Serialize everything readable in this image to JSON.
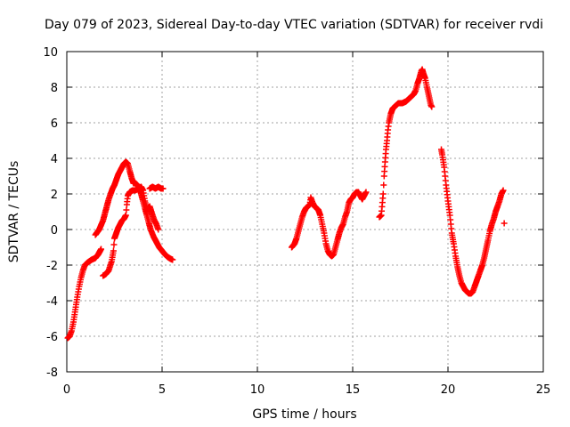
{
  "chart_data": {
    "type": "scatter",
    "title": "Day 079 of 2023, Sidereal Day-to-day VTEC variation (SDTVAR) for receiver rvdi",
    "xlabel": "GPS time / hours",
    "ylabel": "SDTVAR / TECUs",
    "xlim": [
      0,
      25
    ],
    "ylim": [
      -8,
      10
    ],
    "xticks": [
      0,
      5,
      10,
      15,
      20,
      25
    ],
    "yticks": [
      -8,
      -6,
      -4,
      -2,
      0,
      2,
      4,
      6,
      8,
      10
    ],
    "grid": true,
    "marker": "plus",
    "color": "#ff0000",
    "series": [
      {
        "name": "track-1",
        "points": [
          [
            0.05,
            -6.1
          ],
          [
            0.15,
            -6.0
          ],
          [
            0.25,
            -5.7
          ],
          [
            0.35,
            -5.2
          ],
          [
            0.45,
            -4.5
          ],
          [
            0.55,
            -3.8
          ],
          [
            0.65,
            -3.2
          ],
          [
            0.75,
            -2.7
          ],
          [
            0.85,
            -2.3
          ],
          [
            0.95,
            -2.0
          ],
          [
            1.1,
            -1.85
          ],
          [
            1.3,
            -1.7
          ],
          [
            1.5,
            -1.6
          ],
          [
            1.65,
            -1.4
          ],
          [
            1.8,
            -1.1
          ]
        ]
      },
      {
        "name": "track-2",
        "points": [
          [
            1.5,
            -0.3
          ],
          [
            1.7,
            0.0
          ],
          [
            1.9,
            0.5
          ],
          [
            2.0,
            0.9
          ],
          [
            2.1,
            1.3
          ],
          [
            2.2,
            1.7
          ],
          [
            2.3,
            2.0
          ],
          [
            2.4,
            2.3
          ],
          [
            2.5,
            2.5
          ],
          [
            2.6,
            2.8
          ],
          [
            2.7,
            3.1
          ],
          [
            2.8,
            3.3
          ],
          [
            2.9,
            3.5
          ],
          [
            3.0,
            3.7
          ],
          [
            3.1,
            3.8
          ],
          [
            3.2,
            3.7
          ],
          [
            3.3,
            3.3
          ],
          [
            3.4,
            2.9
          ],
          [
            3.5,
            2.6
          ],
          [
            3.6,
            2.6
          ],
          [
            3.7,
            2.5
          ],
          [
            3.8,
            2.3
          ],
          [
            3.9,
            2.0
          ],
          [
            4.0,
            1.6
          ],
          [
            4.1,
            1.2
          ],
          [
            4.2,
            0.8
          ],
          [
            4.3,
            0.4
          ],
          [
            4.4,
            0.0
          ],
          [
            4.55,
            -0.4
          ],
          [
            4.7,
            -0.7
          ],
          [
            4.85,
            -1.0
          ],
          [
            5.0,
            -1.2
          ],
          [
            5.15,
            -1.4
          ],
          [
            5.3,
            -1.55
          ],
          [
            5.45,
            -1.65
          ],
          [
            5.55,
            -1.7
          ]
        ]
      },
      {
        "name": "track-3",
        "points": [
          [
            1.9,
            -2.6
          ],
          [
            2.05,
            -2.5
          ],
          [
            2.2,
            -2.3
          ],
          [
            2.35,
            -1.8
          ],
          [
            2.45,
            -1.2
          ],
          [
            2.5,
            -0.5
          ],
          [
            2.6,
            -0.2
          ],
          [
            2.7,
            0.1
          ],
          [
            2.8,
            0.3
          ],
          [
            2.9,
            0.5
          ],
          [
            3.0,
            0.6
          ],
          [
            3.1,
            0.8
          ],
          [
            3.15,
            1.4
          ],
          [
            3.2,
            1.9
          ],
          [
            3.3,
            2.1
          ],
          [
            3.45,
            2.2
          ],
          [
            3.6,
            2.2
          ],
          [
            3.75,
            2.3
          ],
          [
            3.9,
            2.4
          ],
          [
            4.0,
            2.2
          ],
          [
            4.1,
            1.6
          ],
          [
            4.2,
            1.1
          ],
          [
            4.35,
            1.3
          ],
          [
            4.5,
            0.8
          ],
          [
            4.6,
            0.5
          ],
          [
            4.7,
            0.3
          ],
          [
            4.8,
            0.0
          ]
        ]
      },
      {
        "name": "track-4",
        "points": [
          [
            4.35,
            2.3
          ],
          [
            4.5,
            2.4
          ],
          [
            4.65,
            2.3
          ],
          [
            4.8,
            2.4
          ],
          [
            4.95,
            2.3
          ],
          [
            5.05,
            2.3
          ]
        ]
      },
      {
        "name": "track-5",
        "points": [
          [
            11.8,
            -1.0
          ],
          [
            11.95,
            -0.8
          ],
          [
            12.05,
            -0.5
          ],
          [
            12.15,
            -0.1
          ],
          [
            12.25,
            0.3
          ],
          [
            12.35,
            0.7
          ],
          [
            12.45,
            1.0
          ],
          [
            12.55,
            1.2
          ],
          [
            12.65,
            1.3
          ],
          [
            12.75,
            1.4
          ],
          [
            12.8,
            1.8
          ],
          [
            12.9,
            1.5
          ],
          [
            13.0,
            1.3
          ],
          [
            13.1,
            1.2
          ],
          [
            13.2,
            1.1
          ],
          [
            13.3,
            0.8
          ],
          [
            13.4,
            0.3
          ],
          [
            13.5,
            -0.2
          ],
          [
            13.6,
            -0.8
          ],
          [
            13.7,
            -1.2
          ],
          [
            13.8,
            -1.4
          ],
          [
            13.9,
            -1.5
          ],
          [
            14.0,
            -1.4
          ],
          [
            14.1,
            -1.0
          ],
          [
            14.2,
            -0.6
          ],
          [
            14.3,
            -0.2
          ],
          [
            14.4,
            0.1
          ],
          [
            14.5,
            0.3
          ],
          [
            14.6,
            0.7
          ],
          [
            14.7,
            1.0
          ],
          [
            14.8,
            1.5
          ],
          [
            14.9,
            1.7
          ],
          [
            15.0,
            1.8
          ],
          [
            15.1,
            2.0
          ],
          [
            15.2,
            2.1
          ],
          [
            15.3,
            2.1
          ],
          [
            15.4,
            1.9
          ],
          [
            15.5,
            1.7
          ],
          [
            15.6,
            1.9
          ],
          [
            15.7,
            2.1
          ]
        ]
      },
      {
        "name": "track-6",
        "points": [
          [
            16.4,
            0.7
          ],
          [
            16.5,
            0.8
          ],
          [
            16.6,
            2.0
          ],
          [
            16.65,
            3.0
          ],
          [
            16.7,
            3.8
          ],
          [
            16.75,
            4.5
          ],
          [
            16.8,
            5.0
          ],
          [
            16.85,
            5.6
          ],
          [
            16.9,
            6.0
          ],
          [
            17.0,
            6.5
          ],
          [
            17.1,
            6.8
          ],
          [
            17.2,
            6.9
          ],
          [
            17.3,
            7.0
          ],
          [
            17.4,
            7.1
          ],
          [
            17.5,
            7.1
          ],
          [
            17.6,
            7.1
          ],
          [
            17.7,
            7.15
          ],
          [
            17.8,
            7.2
          ],
          [
            17.9,
            7.3
          ],
          [
            18.0,
            7.4
          ],
          [
            18.1,
            7.5
          ],
          [
            18.2,
            7.6
          ],
          [
            18.3,
            7.8
          ],
          [
            18.4,
            8.2
          ],
          [
            18.5,
            8.5
          ],
          [
            18.6,
            8.9
          ],
          [
            18.65,
            9.0
          ],
          [
            18.7,
            8.8
          ],
          [
            18.8,
            8.5
          ],
          [
            18.9,
            8.0
          ],
          [
            19.0,
            7.5
          ],
          [
            19.1,
            7.0
          ],
          [
            19.15,
            6.9
          ]
        ]
      },
      {
        "name": "track-7",
        "points": [
          [
            19.65,
            4.5
          ],
          [
            19.7,
            4.2
          ],
          [
            19.8,
            3.5
          ],
          [
            19.9,
            2.5
          ],
          [
            20.0,
            1.6
          ],
          [
            20.1,
            0.8
          ],
          [
            20.2,
            -0.2
          ],
          [
            20.3,
            -0.8
          ],
          [
            20.4,
            -1.5
          ],
          [
            20.5,
            -2.1
          ],
          [
            20.6,
            -2.6
          ],
          [
            20.7,
            -3.0
          ],
          [
            20.8,
            -3.2
          ],
          [
            20.9,
            -3.4
          ],
          [
            21.0,
            -3.5
          ],
          [
            21.1,
            -3.6
          ],
          [
            21.2,
            -3.6
          ],
          [
            21.3,
            -3.5
          ],
          [
            21.4,
            -3.2
          ],
          [
            21.5,
            -2.9
          ],
          [
            21.6,
            -2.6
          ],
          [
            21.7,
            -2.3
          ],
          [
            21.8,
            -2.0
          ],
          [
            21.9,
            -1.6
          ],
          [
            22.0,
            -1.1
          ],
          [
            22.1,
            -0.6
          ],
          [
            22.2,
            -0.1
          ],
          [
            22.3,
            0.3
          ],
          [
            22.4,
            0.6
          ],
          [
            22.5,
            1.0
          ],
          [
            22.6,
            1.3
          ],
          [
            22.7,
            1.6
          ],
          [
            22.8,
            2.0
          ],
          [
            22.9,
            2.2
          ]
        ]
      },
      {
        "name": "track-8",
        "points": [
          [
            22.95,
            0.35
          ]
        ]
      }
    ]
  }
}
